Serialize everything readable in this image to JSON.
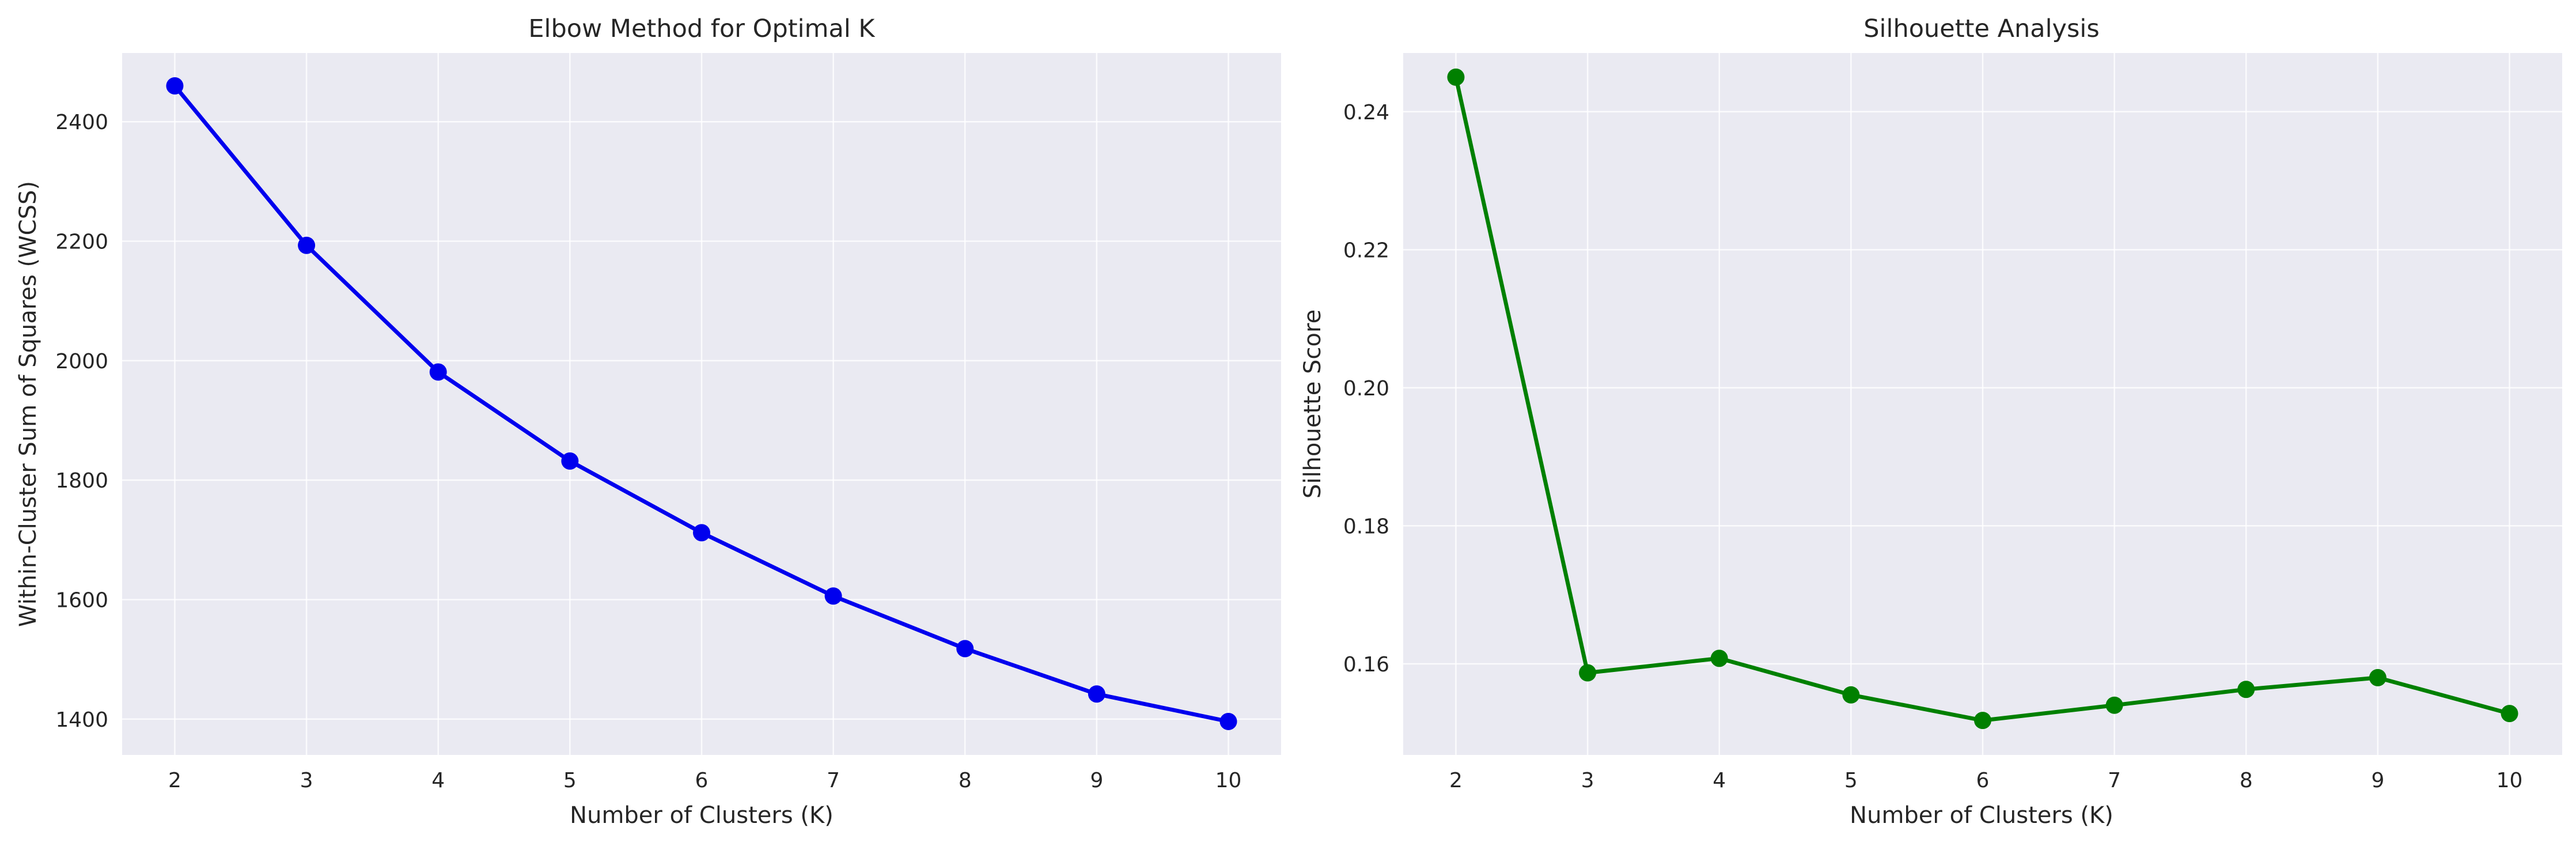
{
  "chart_data": [
    {
      "type": "line",
      "title": "Elbow Method for Optimal K",
      "xlabel": "Number of Clusters (K)",
      "ylabel": "Within-Cluster Sum of Squares (WCSS)",
      "x": [
        2,
        3,
        4,
        5,
        6,
        7,
        8,
        9,
        10
      ],
      "xticks": [
        "2",
        "3",
        "4",
        "5",
        "6",
        "7",
        "8",
        "9",
        "10"
      ],
      "yticks": [
        1400,
        1600,
        1800,
        2000,
        2200,
        2400
      ],
      "ylim": [
        1340,
        2515
      ],
      "xlim": [
        1.6,
        10.4
      ],
      "grid": true,
      "color": "#0000ee",
      "series": [
        {
          "values": [
            2460,
            2193,
            1981,
            1832,
            1712,
            1606,
            1518,
            1442,
            1396
          ]
        }
      ]
    },
    {
      "type": "line",
      "title": "Silhouette Analysis",
      "xlabel": "Number of Clusters (K)",
      "ylabel": "Silhouette Score",
      "x": [
        2,
        3,
        4,
        5,
        6,
        7,
        8,
        9,
        10
      ],
      "xticks": [
        "2",
        "3",
        "4",
        "5",
        "6",
        "7",
        "8",
        "9",
        "10"
      ],
      "yticks": [
        0.16,
        0.18,
        0.2,
        0.22,
        0.24
      ],
      "ytick_labels": [
        "0.16",
        "0.18",
        "0.20",
        "0.22",
        "0.24"
      ],
      "ylim": [
        0.1468,
        0.2485
      ],
      "xlim": [
        1.6,
        10.4
      ],
      "grid": true,
      "color": "#008000",
      "series": [
        {
          "values": [
            0.245,
            0.1587,
            0.1608,
            0.1555,
            0.1518,
            0.154,
            0.1563,
            0.158,
            0.1528
          ]
        }
      ]
    }
  ]
}
